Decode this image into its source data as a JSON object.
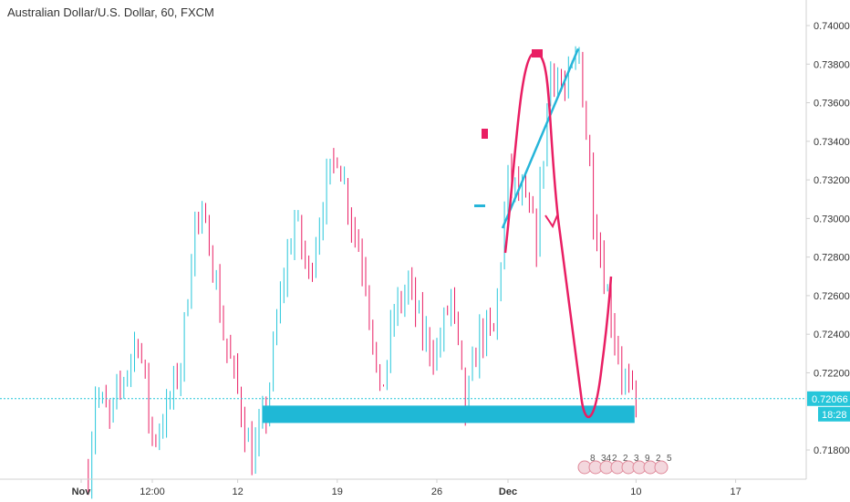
{
  "header": {
    "title": "Australian Dollar/U.S. Dollar, 60, FXCM"
  },
  "colors": {
    "up": "#26c6da",
    "down": "#e91e63",
    "drawing_pink": "#e91e63",
    "drawing_cyan": "#26b5d9",
    "support_band": "#1fb8d6",
    "price_line": "#26c6da",
    "axis_text": "#333333",
    "axis_line": "#d0d0d0"
  },
  "price_axis": {
    "last_price_label": "0.72066",
    "countdown_label": "18:28"
  },
  "event_markers": [
    {
      "label": "8",
      "icon": "us-flag-icon"
    },
    {
      "label": "34",
      "icon": "us-flag-icon"
    },
    {
      "label": "2",
      "icon": "us-flag-icon"
    },
    {
      "label": "2",
      "icon": "us-flag-icon"
    },
    {
      "label": "3",
      "icon": "us-flag-icon"
    },
    {
      "label": "9",
      "icon": "us-flag-icon"
    },
    {
      "label": "2",
      "icon": "us-flag-icon"
    },
    {
      "label": "5",
      "icon": "us-flag-icon"
    }
  ],
  "chart_data": {
    "type": "candlestick",
    "title": "Australian Dollar/U.S. Dollar, 60, FXCM",
    "ylim": [
      0.7165,
      0.7405
    ],
    "y_ticks": [
      "0.74000",
      "0.73800",
      "0.73600",
      "0.73400",
      "0.73200",
      "0.73000",
      "0.72800",
      "0.72600",
      "0.72400",
      "0.72200",
      "0.71800"
    ],
    "x_ticks": [
      "Nov",
      "12:00",
      "12",
      "19",
      "26",
      "Dec",
      "10",
      "17"
    ],
    "last_price": 0.72066,
    "price_path": [
      [
        "Nov 1 12:00",
        0.7168
      ],
      [
        "Nov 2",
        0.721
      ],
      [
        "Nov 3",
        0.7195
      ],
      [
        "Nov 5",
        0.724
      ],
      [
        "Nov 6",
        0.7185
      ],
      [
        "Nov 7",
        0.72
      ],
      [
        "Nov 8",
        0.7225
      ],
      [
        "Nov 9",
        0.73
      ],
      [
        "Nov 10",
        0.729
      ],
      [
        "Nov 11",
        0.724
      ],
      [
        "Nov 12",
        0.721
      ],
      [
        "Nov 13",
        0.7175
      ],
      [
        "Nov 14",
        0.72
      ],
      [
        "Nov 15",
        0.726
      ],
      [
        "Nov 16",
        0.73
      ],
      [
        "Nov 17",
        0.727
      ],
      [
        "Nov 18",
        0.731
      ],
      [
        "Nov 19",
        0.7335
      ],
      [
        "Nov 20",
        0.73
      ],
      [
        "Nov 21",
        0.727
      ],
      [
        "Nov 22",
        0.7205
      ],
      [
        "Nov 23",
        0.725
      ],
      [
        "Nov 24",
        0.7265
      ],
      [
        "Nov 25",
        0.724
      ],
      [
        "Nov 26",
        0.723
      ],
      [
        "Nov 27",
        0.726
      ],
      [
        "Nov 28",
        0.72
      ],
      [
        "Nov 29",
        0.724
      ],
      [
        "Nov 30",
        0.724
      ],
      [
        "Dec 1",
        0.732
      ],
      [
        "Dec 2",
        0.731
      ],
      [
        "Dec 3",
        0.729
      ],
      [
        "Dec 4",
        0.738
      ],
      [
        "Dec 5",
        0.7365
      ],
      [
        "Dec 6",
        0.7385
      ],
      [
        "Dec 7",
        0.7305
      ],
      [
        "Dec 8",
        0.726
      ],
      [
        "Dec 9",
        0.722
      ],
      [
        "Dec 10",
        0.72
      ]
    ],
    "support_zone": {
      "from": "Nov 14",
      "to": "Dec 9",
      "low": 0.7194,
      "high": 0.7203
    },
    "annotations": [
      {
        "type": "pink-curve",
        "description": "projected move"
      },
      {
        "type": "cyan-line"
      }
    ]
  }
}
